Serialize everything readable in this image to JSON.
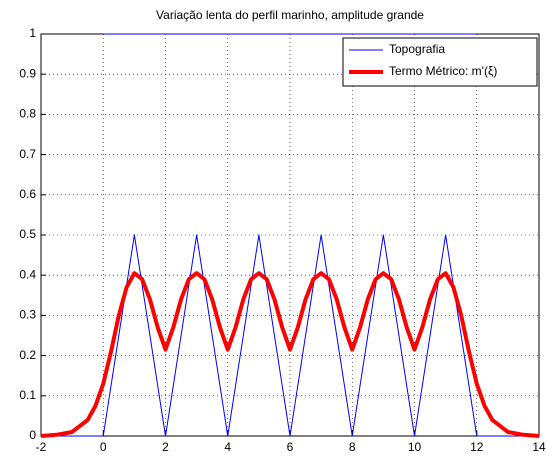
{
  "chart_data": {
    "type": "line",
    "title": "Variação lenta do perfil marinho, amplitude grande",
    "xlim": [
      -2,
      14
    ],
    "ylim": [
      0,
      1
    ],
    "xticks": [
      -2,
      0,
      2,
      4,
      6,
      8,
      10,
      12,
      14
    ],
    "yticks": [
      0,
      0.1,
      0.2,
      0.3,
      0.4,
      0.5,
      0.6,
      0.7,
      0.8,
      0.9,
      1
    ],
    "grid": true,
    "legend": "upper right",
    "series": [
      {
        "name": "Topografia",
        "color": "#0000ff",
        "linewidth": 1,
        "x": [
          -2,
          0,
          1,
          2,
          3,
          4,
          5,
          6,
          7,
          8,
          9,
          10,
          11,
          12,
          14
        ],
        "values": [
          0,
          0,
          0.5,
          0,
          0.5,
          0,
          0.5,
          0,
          0.5,
          0,
          0.5,
          0,
          0.5,
          0,
          0
        ]
      },
      {
        "name": "Termo Métrico: m'(ξ)",
        "color": "#ff0000",
        "linewidth": 4,
        "x": [
          -2,
          -1.5,
          -1,
          -0.5,
          -0.25,
          0,
          0.25,
          0.5,
          0.75,
          1,
          1.25,
          1.5,
          1.75,
          2,
          2.25,
          2.5,
          2.75,
          3,
          3.25,
          3.5,
          3.75,
          4,
          4.25,
          4.5,
          4.75,
          5,
          5.25,
          5.5,
          5.75,
          6,
          6.25,
          6.5,
          6.75,
          7,
          7.25,
          7.5,
          7.75,
          8,
          8.25,
          8.5,
          8.75,
          9,
          9.25,
          9.5,
          9.75,
          10,
          10.25,
          10.5,
          10.75,
          11,
          11.25,
          11.5,
          11.75,
          12,
          12.25,
          12.5,
          13,
          13.5,
          14
        ],
        "values": [
          0,
          0.003,
          0.01,
          0.04,
          0.075,
          0.13,
          0.21,
          0.3,
          0.37,
          0.405,
          0.39,
          0.34,
          0.27,
          0.215,
          0.27,
          0.34,
          0.39,
          0.405,
          0.39,
          0.34,
          0.27,
          0.215,
          0.27,
          0.34,
          0.39,
          0.405,
          0.39,
          0.34,
          0.27,
          0.215,
          0.27,
          0.34,
          0.39,
          0.405,
          0.39,
          0.34,
          0.27,
          0.215,
          0.27,
          0.34,
          0.39,
          0.405,
          0.39,
          0.34,
          0.27,
          0.215,
          0.27,
          0.34,
          0.39,
          0.405,
          0.37,
          0.3,
          0.21,
          0.13,
          0.075,
          0.04,
          0.01,
          0.003,
          0
        ]
      },
      {
        "color": "#0000ff",
        "linewidth": 1,
        "x": [
          0,
          12
        ],
        "values": [
          1,
          1
        ]
      }
    ]
  }
}
